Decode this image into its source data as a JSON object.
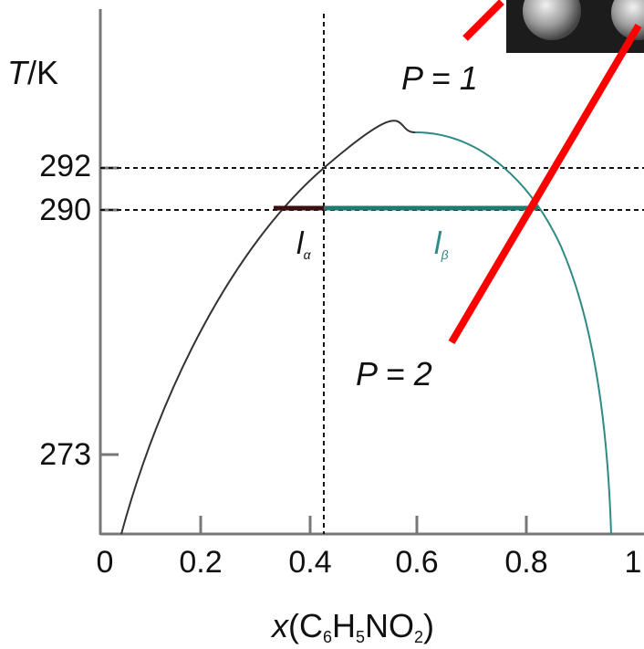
{
  "y_axis": {
    "label": [
      "T",
      "/K"
    ],
    "ticks": [
      "292",
      "290",
      "273"
    ]
  },
  "x_axis": {
    "ticks": [
      "0",
      "0.2",
      "0.4",
      "0.6",
      "0.8",
      "1"
    ],
    "label": [
      "x",
      "(C",
      "6",
      "H",
      "5",
      "NO",
      "2",
      ")"
    ]
  },
  "annotations": {
    "one_phase": "P = 1",
    "two_phase": "P = 2",
    "l_alpha": {
      "text": "l",
      "sub": "α"
    },
    "l_beta": {
      "text": "l",
      "sub": "β"
    }
  }
}
